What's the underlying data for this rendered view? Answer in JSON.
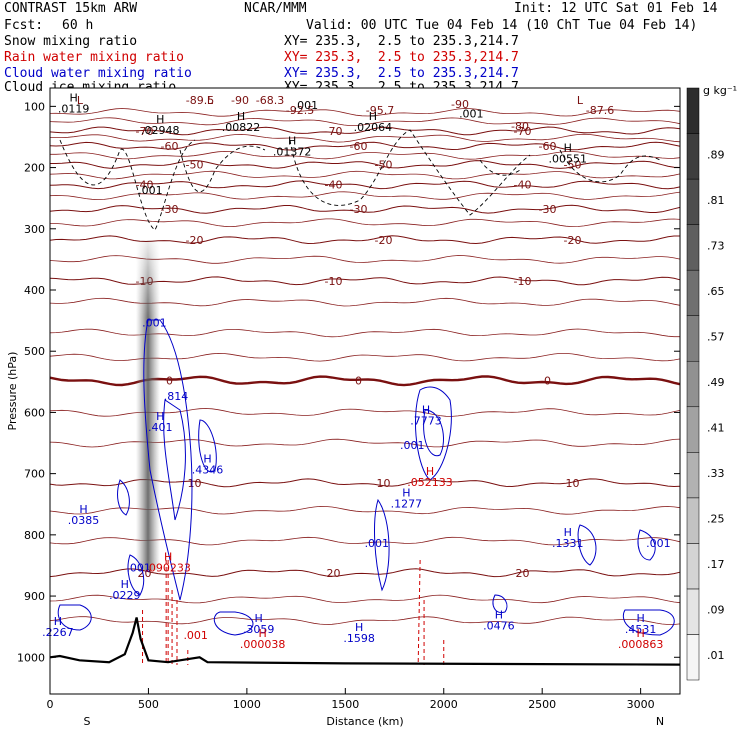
{
  "header": {
    "model": "CONTRAST 15km ARW",
    "org": "NCAR/MMM",
    "init": "Init: 12 UTC Sat 01 Feb 14",
    "fcst_label": "Fcst:",
    "fcst_value": "60 h",
    "valid": "Valid: 00 UTC Tue 04 Feb 14 (10 ChT Tue 04 Feb 14)",
    "fields": [
      {
        "name": "Snow mixing ratio",
        "xy": "XY= 235.3,  2.5 to 235.3,214.7",
        "color": "#000000"
      },
      {
        "name": "Rain water mixing ratio",
        "xy": "XY= 235.3,  2.5 to 235.3,214.7",
        "color": "#d00000"
      },
      {
        "name": "Cloud water mixing ratio",
        "xy": "XY= 235.3,  2.5 to 235.3,214.7",
        "color": "#0000c8"
      },
      {
        "name": "Cloud ice mixing ratio",
        "xy": "XY= 235.3,  2.5 to 235.3,214.7",
        "color": "#000000"
      }
    ]
  },
  "chart_data": {
    "type": "cross-section",
    "xlabel": "Distance (km)",
    "ylabel": "Pressure (hPa)",
    "xlim": [
      0,
      3200
    ],
    "ylim": [
      1060,
      70
    ],
    "x_ticks": [
      0,
      500,
      1000,
      1500,
      2000,
      2500,
      3000
    ],
    "y_ticks": [
      100,
      200,
      300,
      400,
      500,
      600,
      700,
      800,
      900,
      1000
    ],
    "x_end_labels": {
      "left": "S",
      "right": "N"
    },
    "colorbar": {
      "unit": "g kg⁻¹",
      "levels": [
        ".01",
        ".09",
        ".17",
        ".25",
        ".33",
        ".41",
        ".49",
        ".57",
        ".65",
        ".73",
        ".81",
        ".89"
      ]
    },
    "temperature_contours": [
      {
        "label": "-70",
        "p": 140
      },
      {
        "label": "-60",
        "p": 165
      },
      {
        "label": "-50",
        "p": 195
      },
      {
        "label": "-40",
        "p": 228
      },
      {
        "label": "-30",
        "p": 268
      },
      {
        "label": "-20",
        "p": 318
      },
      {
        "label": "-10",
        "p": 385
      },
      {
        "label": "0",
        "p": 548
      },
      {
        "label": "10",
        "p": 715
      },
      {
        "label": "20",
        "p": 862
      }
    ],
    "top_contour_labels": [
      "L",
      "-89.5",
      "-68.3",
      "L",
      "-92.5",
      "-95.7",
      "-90",
      "L",
      "-87.6",
      "-80",
      "-90"
    ],
    "terrain": [
      [
        0,
        1000
      ],
      [
        50,
        998
      ],
      [
        150,
        1005
      ],
      [
        300,
        1008
      ],
      [
        380,
        995
      ],
      [
        420,
        960
      ],
      [
        440,
        935
      ],
      [
        460,
        970
      ],
      [
        500,
        1005
      ],
      [
        600,
        1008
      ],
      [
        760,
        1000
      ],
      [
        800,
        1008
      ],
      [
        1500,
        1010
      ],
      [
        3200,
        1012
      ]
    ],
    "snow_maxima": [
      {
        "label": "H",
        "value": ".0119",
        "x": 120,
        "p": 110
      },
      {
        "label": "H",
        "value": ".02948",
        "x": 560,
        "p": 145
      },
      {
        "label": "H",
        "value": ".00822",
        "x": 970,
        "p": 140
      },
      {
        "label": "H",
        "value": ".01372",
        "x": 1230,
        "p": 180
      },
      {
        "label": "H",
        "value": ".02064",
        "x": 1640,
        "p": 140
      },
      {
        "label": "H",
        "value": ".00551",
        "x": 2630,
        "p": 192
      },
      {
        "label": "",
        "value": ".001",
        "x": 1300,
        "p": 104
      },
      {
        "label": "",
        "value": ".001",
        "x": 2140,
        "p": 118
      },
      {
        "label": "",
        "value": ".001",
        "x": 510,
        "p": 243
      }
    ],
    "cloud_water_maxima": [
      {
        "label": "H",
        "value": ".401",
        "x": 560,
        "p": 630
      },
      {
        "label": "H",
        "value": ".4346",
        "x": 800,
        "p": 700
      },
      {
        "label": "H",
        "value": ".1277",
        "x": 1810,
        "p": 755
      },
      {
        "label": "H",
        "value": ".7773",
        "x": 1910,
        "p": 620
      },
      {
        "label": "H",
        "value": ".0385",
        "x": 170,
        "p": 782
      },
      {
        "label": "H",
        "value": ".0229",
        "x": 380,
        "p": 905
      },
      {
        "label": "H",
        "value": ".2267",
        "x": 40,
        "p": 965
      },
      {
        "label": "H",
        "value": ".3059",
        "x": 1060,
        "p": 960
      },
      {
        "label": "H",
        "value": ".1598",
        "x": 1570,
        "p": 975
      },
      {
        "label": "H",
        "value": ".0476",
        "x": 2280,
        "p": 955
      },
      {
        "label": "H",
        "value": ".1331",
        "x": 2630,
        "p": 820
      },
      {
        "label": "H",
        "value": ".4531",
        "x": 3000,
        "p": 960
      },
      {
        "label": "",
        "value": ".001",
        "x": 530,
        "p": 460
      },
      {
        "label": "",
        "value": ".814",
        "x": 640,
        "p": 580
      },
      {
        "label": "",
        "value": ".001",
        "x": 1660,
        "p": 820
      },
      {
        "label": "",
        "value": ".001",
        "x": 3090,
        "p": 820
      },
      {
        "label": "",
        "value": ".001",
        "x": 450,
        "p": 860
      },
      {
        "label": "",
        "value": ".001",
        "x": 1840,
        "p": 660
      }
    ],
    "rain_maxima": [
      {
        "label": "H",
        "value": ".090233",
        "x": 600,
        "p": 860
      },
      {
        "label": "H",
        "value": ".052133",
        "x": 1930,
        "p": 720
      },
      {
        "label": "H",
        "value": ".000038",
        "x": 1080,
        "p": 985
      },
      {
        "label": "H",
        "value": ".000863",
        "x": 3000,
        "p": 985
      },
      {
        "label": "",
        "value": ".001",
        "x": 740,
        "p": 970
      }
    ]
  }
}
